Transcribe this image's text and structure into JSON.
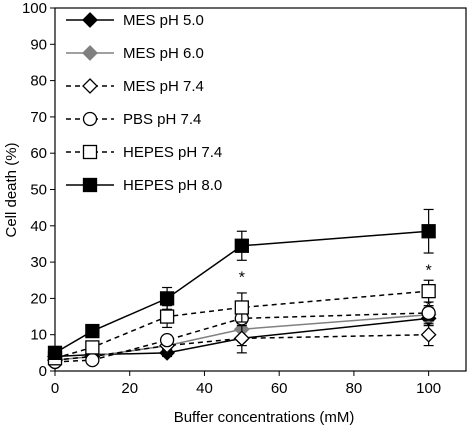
{
  "chart_data": {
    "type": "line",
    "title": "",
    "xlabel": "Buffer concentrations (mM)",
    "ylabel": "Cell death (%)",
    "xlim": [
      0,
      110
    ],
    "ylim": [
      0,
      100
    ],
    "xticks": [
      0,
      20,
      40,
      60,
      80,
      100
    ],
    "yticks": [
      0,
      10,
      20,
      30,
      40,
      50,
      60,
      70,
      80,
      90,
      100
    ],
    "grid": false,
    "legend_position": "top-left",
    "x": [
      0,
      10,
      30,
      50,
      100
    ],
    "series": [
      {
        "name": "MES pH 5.0",
        "marker": "diamond-filled",
        "line": "solid",
        "color": "#000000",
        "values": [
          4,
          4.5,
          5,
          9,
          14.5
        ],
        "errors": [
          0.5,
          0.5,
          1,
          2,
          2
        ]
      },
      {
        "name": "MES pH 6.0",
        "marker": "diamond-gray",
        "line": "solid",
        "color": "#808080",
        "values": [
          3,
          4,
          7,
          11.5,
          15.5
        ],
        "errors": [
          0.5,
          0.5,
          1,
          2,
          2
        ]
      },
      {
        "name": "MES pH 7.4",
        "marker": "diamond-open",
        "line": "dashed",
        "color": "#000000",
        "values": [
          3,
          4,
          7,
          9,
          10
        ],
        "errors": [
          0.5,
          0.5,
          1,
          4,
          3
        ]
      },
      {
        "name": "PBS pH 7.4",
        "marker": "circle-open",
        "line": "dashed",
        "color": "#000000",
        "values": [
          2.5,
          3,
          8.5,
          14.5,
          16
        ],
        "errors": [
          0.5,
          0.5,
          1,
          2,
          2
        ]
      },
      {
        "name": "HEPES pH 7.4",
        "marker": "square-open",
        "line": "dashed",
        "color": "#000000",
        "values": [
          3.5,
          6.5,
          15,
          17.5,
          22
        ],
        "errors": [
          1,
          1,
          3,
          4,
          3
        ]
      },
      {
        "name": "HEPES pH 8.0",
        "marker": "square-filled",
        "line": "solid",
        "color": "#000000",
        "values": [
          5,
          11,
          20,
          34.5,
          38.5
        ],
        "errors": [
          1,
          1,
          3,
          4,
          6
        ]
      }
    ],
    "annotations": [
      {
        "text": "*",
        "x": 50,
        "y": 26
      },
      {
        "text": "*",
        "x": 100,
        "y": 28
      },
      {
        "text": "*",
        "x": 100,
        "y": 18
      }
    ]
  }
}
